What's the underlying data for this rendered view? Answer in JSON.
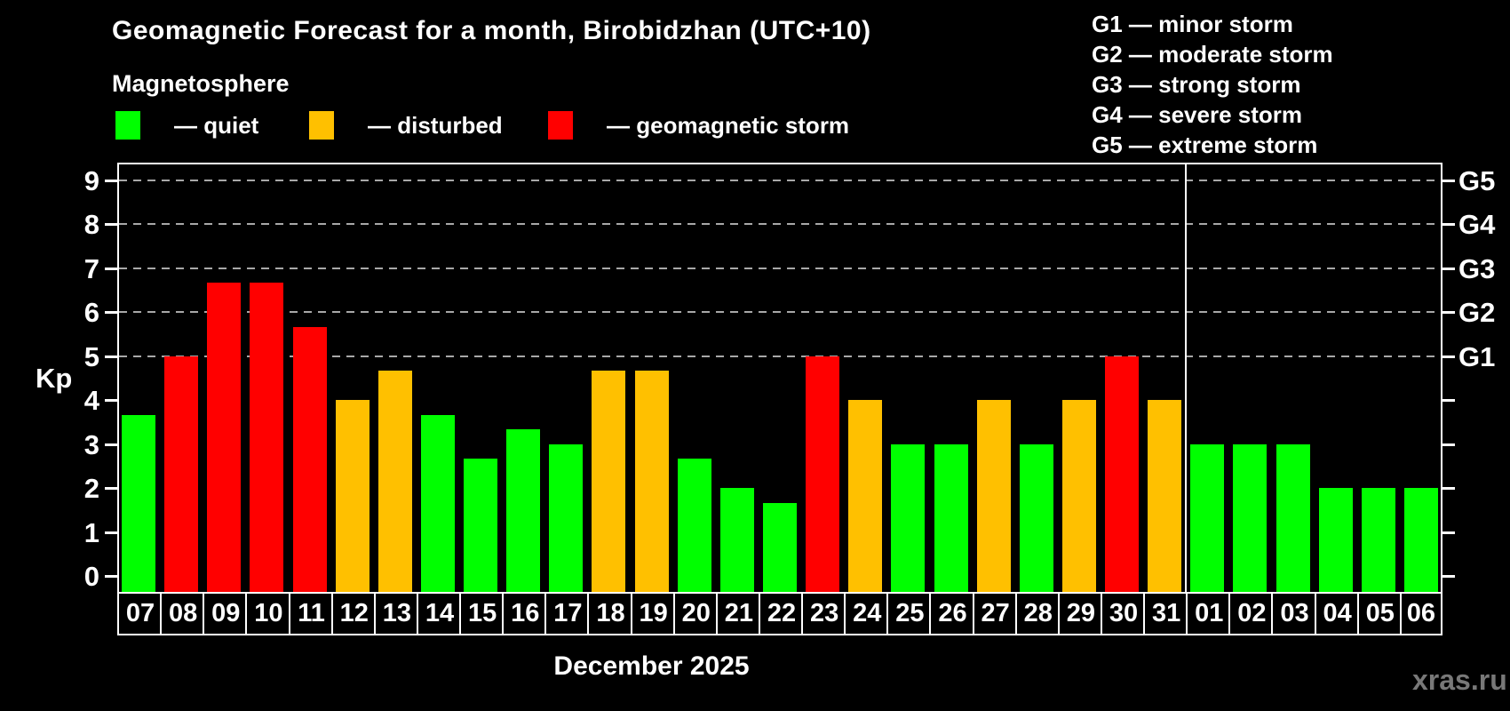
{
  "title": "Geomagnetic Forecast for a month, Birobidzhan (UTC+10)",
  "subtitle": "Magnetosphere",
  "condition_legend": [
    {
      "id": "quiet",
      "label": "— quiet",
      "color": "#00ff00"
    },
    {
      "id": "disturbed",
      "label": "— disturbed",
      "color": "#ffc000"
    },
    {
      "id": "storm",
      "label": "— geomagnetic storm",
      "color": "#ff0000"
    }
  ],
  "storm_scale_legend": [
    "G1 — minor storm",
    "G2 — moderate storm",
    "G3 — strong storm",
    "G4 — severe storm",
    "G5 — extreme storm"
  ],
  "watermark": "xras.ru",
  "chart_data": {
    "type": "bar",
    "title": "Geomagnetic Forecast for a month, Birobidzhan (UTC+10)",
    "ylabel": "Kp",
    "xlabel": "December 2025",
    "ylim": [
      -0.4,
      9.4
    ],
    "yticks": [
      0,
      1,
      2,
      3,
      4,
      5,
      6,
      7,
      8,
      9
    ],
    "gridlines_at": [
      5,
      6,
      7,
      8,
      9
    ],
    "grid": "dashed",
    "right_axis_labels": [
      {
        "value": 5,
        "label": "G1"
      },
      {
        "value": 6,
        "label": "G2"
      },
      {
        "value": 7,
        "label": "G3"
      },
      {
        "value": 8,
        "label": "G4"
      },
      {
        "value": 9,
        "label": "G5"
      }
    ],
    "categories": [
      "07",
      "08",
      "09",
      "10",
      "11",
      "12",
      "13",
      "14",
      "15",
      "16",
      "17",
      "18",
      "19",
      "20",
      "21",
      "22",
      "23",
      "24",
      "25",
      "26",
      "27",
      "28",
      "29",
      "30",
      "31",
      "01",
      "02",
      "03",
      "04",
      "05",
      "06"
    ],
    "values": [
      3.67,
      5,
      6.67,
      6.67,
      5.67,
      4,
      4.67,
      3.67,
      2.67,
      3.33,
      3,
      4.67,
      4.67,
      2.67,
      2,
      1.67,
      5,
      4,
      3,
      3,
      4,
      3,
      4,
      5,
      4,
      3,
      3,
      3,
      2,
      2,
      2
    ],
    "statuses": [
      "quiet",
      "storm",
      "storm",
      "storm",
      "storm",
      "disturbed",
      "disturbed",
      "quiet",
      "quiet",
      "quiet",
      "quiet",
      "disturbed",
      "disturbed",
      "quiet",
      "quiet",
      "quiet",
      "storm",
      "disturbed",
      "quiet",
      "quiet",
      "disturbed",
      "quiet",
      "disturbed",
      "storm",
      "disturbed",
      "quiet",
      "quiet",
      "quiet",
      "quiet",
      "quiet",
      "quiet"
    ],
    "colors": {
      "quiet": "#00ff00",
      "disturbed": "#ffc000",
      "storm": "#ff0000"
    },
    "month_divider_after_index": 24,
    "legend_position": "top-left"
  }
}
